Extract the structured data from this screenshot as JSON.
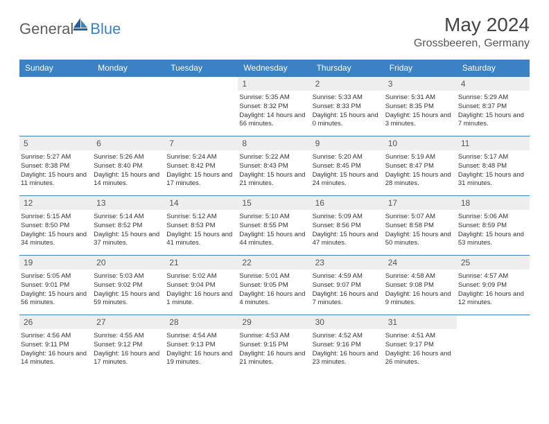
{
  "logo": {
    "text1": "General",
    "text2": "Blue"
  },
  "title": "May 2024",
  "location": "Grossbeeren, Germany",
  "colors": {
    "header_bg": "#3b82c4",
    "header_fg": "#ffffff",
    "daynum_bg": "#eeeeee",
    "border": "#3b82c4",
    "logo_gray": "#5d5d5d",
    "logo_blue": "#3b82c4"
  },
  "typography": {
    "title_fontsize": 28,
    "location_fontsize": 16,
    "dayheader_fontsize": 12,
    "dayinfo_fontsize": 9.5
  },
  "day_headers": [
    "Sunday",
    "Monday",
    "Tuesday",
    "Wednesday",
    "Thursday",
    "Friday",
    "Saturday"
  ],
  "weeks": [
    [
      {
        "blank": true
      },
      {
        "blank": true
      },
      {
        "blank": true
      },
      {
        "day": "1",
        "sunrise": "Sunrise: 5:35 AM",
        "sunset": "Sunset: 8:32 PM",
        "daylight": "Daylight: 14 hours and 56 minutes."
      },
      {
        "day": "2",
        "sunrise": "Sunrise: 5:33 AM",
        "sunset": "Sunset: 8:33 PM",
        "daylight": "Daylight: 15 hours and 0 minutes."
      },
      {
        "day": "3",
        "sunrise": "Sunrise: 5:31 AM",
        "sunset": "Sunset: 8:35 PM",
        "daylight": "Daylight: 15 hours and 3 minutes."
      },
      {
        "day": "4",
        "sunrise": "Sunrise: 5:29 AM",
        "sunset": "Sunset: 8:37 PM",
        "daylight": "Daylight: 15 hours and 7 minutes."
      }
    ],
    [
      {
        "day": "5",
        "sunrise": "Sunrise: 5:27 AM",
        "sunset": "Sunset: 8:38 PM",
        "daylight": "Daylight: 15 hours and 11 minutes."
      },
      {
        "day": "6",
        "sunrise": "Sunrise: 5:26 AM",
        "sunset": "Sunset: 8:40 PM",
        "daylight": "Daylight: 15 hours and 14 minutes."
      },
      {
        "day": "7",
        "sunrise": "Sunrise: 5:24 AM",
        "sunset": "Sunset: 8:42 PM",
        "daylight": "Daylight: 15 hours and 17 minutes."
      },
      {
        "day": "8",
        "sunrise": "Sunrise: 5:22 AM",
        "sunset": "Sunset: 8:43 PM",
        "daylight": "Daylight: 15 hours and 21 minutes."
      },
      {
        "day": "9",
        "sunrise": "Sunrise: 5:20 AM",
        "sunset": "Sunset: 8:45 PM",
        "daylight": "Daylight: 15 hours and 24 minutes."
      },
      {
        "day": "10",
        "sunrise": "Sunrise: 5:19 AM",
        "sunset": "Sunset: 8:47 PM",
        "daylight": "Daylight: 15 hours and 28 minutes."
      },
      {
        "day": "11",
        "sunrise": "Sunrise: 5:17 AM",
        "sunset": "Sunset: 8:48 PM",
        "daylight": "Daylight: 15 hours and 31 minutes."
      }
    ],
    [
      {
        "day": "12",
        "sunrise": "Sunrise: 5:15 AM",
        "sunset": "Sunset: 8:50 PM",
        "daylight": "Daylight: 15 hours and 34 minutes."
      },
      {
        "day": "13",
        "sunrise": "Sunrise: 5:14 AM",
        "sunset": "Sunset: 8:52 PM",
        "daylight": "Daylight: 15 hours and 37 minutes."
      },
      {
        "day": "14",
        "sunrise": "Sunrise: 5:12 AM",
        "sunset": "Sunset: 8:53 PM",
        "daylight": "Daylight: 15 hours and 41 minutes."
      },
      {
        "day": "15",
        "sunrise": "Sunrise: 5:10 AM",
        "sunset": "Sunset: 8:55 PM",
        "daylight": "Daylight: 15 hours and 44 minutes."
      },
      {
        "day": "16",
        "sunrise": "Sunrise: 5:09 AM",
        "sunset": "Sunset: 8:56 PM",
        "daylight": "Daylight: 15 hours and 47 minutes."
      },
      {
        "day": "17",
        "sunrise": "Sunrise: 5:07 AM",
        "sunset": "Sunset: 8:58 PM",
        "daylight": "Daylight: 15 hours and 50 minutes."
      },
      {
        "day": "18",
        "sunrise": "Sunrise: 5:06 AM",
        "sunset": "Sunset: 8:59 PM",
        "daylight": "Daylight: 15 hours and 53 minutes."
      }
    ],
    [
      {
        "day": "19",
        "sunrise": "Sunrise: 5:05 AM",
        "sunset": "Sunset: 9:01 PM",
        "daylight": "Daylight: 15 hours and 56 minutes."
      },
      {
        "day": "20",
        "sunrise": "Sunrise: 5:03 AM",
        "sunset": "Sunset: 9:02 PM",
        "daylight": "Daylight: 15 hours and 59 minutes."
      },
      {
        "day": "21",
        "sunrise": "Sunrise: 5:02 AM",
        "sunset": "Sunset: 9:04 PM",
        "daylight": "Daylight: 16 hours and 1 minute."
      },
      {
        "day": "22",
        "sunrise": "Sunrise: 5:01 AM",
        "sunset": "Sunset: 9:05 PM",
        "daylight": "Daylight: 16 hours and 4 minutes."
      },
      {
        "day": "23",
        "sunrise": "Sunrise: 4:59 AM",
        "sunset": "Sunset: 9:07 PM",
        "daylight": "Daylight: 16 hours and 7 minutes."
      },
      {
        "day": "24",
        "sunrise": "Sunrise: 4:58 AM",
        "sunset": "Sunset: 9:08 PM",
        "daylight": "Daylight: 16 hours and 9 minutes."
      },
      {
        "day": "25",
        "sunrise": "Sunrise: 4:57 AM",
        "sunset": "Sunset: 9:09 PM",
        "daylight": "Daylight: 16 hours and 12 minutes."
      }
    ],
    [
      {
        "day": "26",
        "sunrise": "Sunrise: 4:56 AM",
        "sunset": "Sunset: 9:11 PM",
        "daylight": "Daylight: 16 hours and 14 minutes."
      },
      {
        "day": "27",
        "sunrise": "Sunrise: 4:55 AM",
        "sunset": "Sunset: 9:12 PM",
        "daylight": "Daylight: 16 hours and 17 minutes."
      },
      {
        "day": "28",
        "sunrise": "Sunrise: 4:54 AM",
        "sunset": "Sunset: 9:13 PM",
        "daylight": "Daylight: 16 hours and 19 minutes."
      },
      {
        "day": "29",
        "sunrise": "Sunrise: 4:53 AM",
        "sunset": "Sunset: 9:15 PM",
        "daylight": "Daylight: 16 hours and 21 minutes."
      },
      {
        "day": "30",
        "sunrise": "Sunrise: 4:52 AM",
        "sunset": "Sunset: 9:16 PM",
        "daylight": "Daylight: 16 hours and 23 minutes."
      },
      {
        "day": "31",
        "sunrise": "Sunrise: 4:51 AM",
        "sunset": "Sunset: 9:17 PM",
        "daylight": "Daylight: 16 hours and 26 minutes."
      },
      {
        "blank": true
      }
    ]
  ]
}
